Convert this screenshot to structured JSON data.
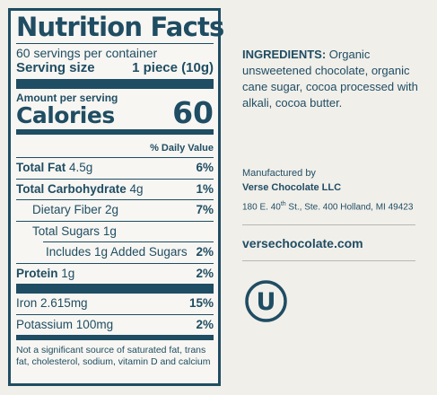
{
  "label": {
    "title": "Nutrition Facts",
    "servings": "60 servings per container",
    "serving_size_label": "Serving size",
    "serving_size_value": "1 piece (10g)",
    "amount_per_serving": "Amount per serving",
    "calories_label": "Calories",
    "calories_value": "60",
    "daily_value_header": "% Daily Value",
    "rows": [
      {
        "name": "Total Fat",
        "amount": "4.5g",
        "dv": "6%"
      },
      {
        "name": "Total Carbohydrate",
        "amount": "4g",
        "dv": "1%"
      },
      {
        "name": "Dietary Fiber",
        "amount": "2g",
        "dv": "7%"
      },
      {
        "name": "Total Sugars",
        "amount": "1g",
        "dv": ""
      },
      {
        "name": "Includes 1g Added Sugars",
        "amount": "",
        "dv": "2%"
      },
      {
        "name": "Protein",
        "amount": "1g",
        "dv": "2%"
      },
      {
        "name": "Iron",
        "amount": "2.615mg",
        "dv": "15%"
      },
      {
        "name": "Potassium",
        "amount": "100mg",
        "dv": "2%"
      }
    ],
    "footnote": "Not a significant source of saturated fat, trans fat, cholesterol, sodium, vitamin D and calcium"
  },
  "ingredients": {
    "heading": "INGREDIENTS:",
    "text": "Organic unsweetened chocolate, organic cane sugar, cocoa processed with alkali, cocoa butter."
  },
  "manufacturer": {
    "by": "Manufactured by",
    "name": "Verse Chocolate LLC",
    "address": "180 E. 40th St., Ste. 400 Holland, MI 49423"
  },
  "website": "versechocolate.com",
  "certification_mark": {
    "letter": "U",
    "icon": "ou-kosher-icon"
  },
  "colors": {
    "ink": "#1f4d63",
    "background": "#f1efea"
  }
}
